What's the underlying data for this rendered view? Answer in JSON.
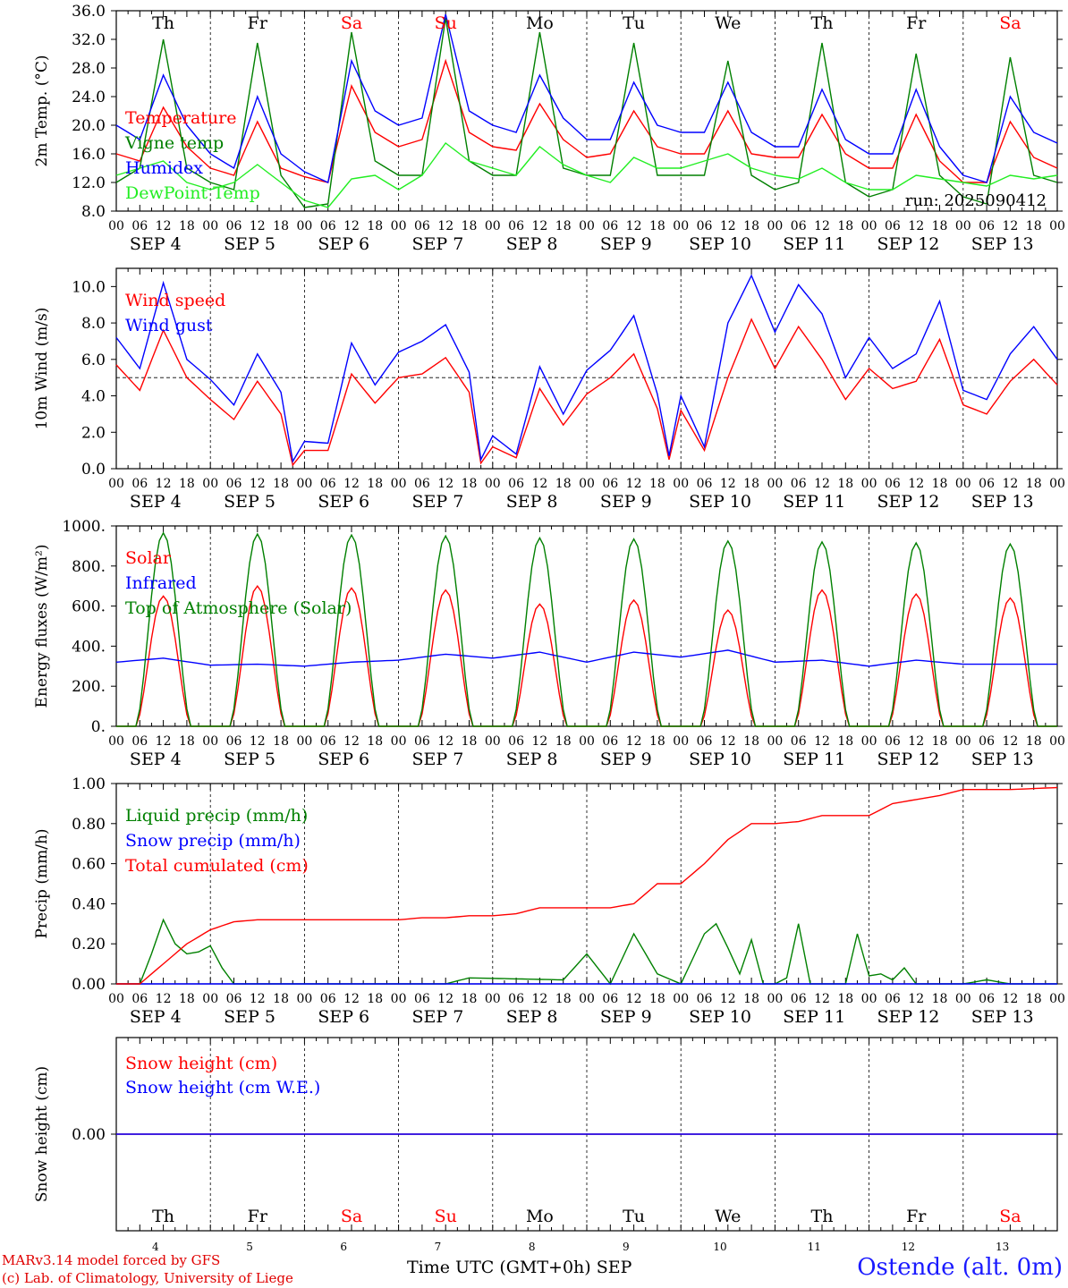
{
  "days": [
    {
      "weekday": "Th",
      "date": "SEP  4",
      "num": "4",
      "weekend": false
    },
    {
      "weekday": "Fr",
      "date": "SEP  5",
      "num": "5",
      "weekend": false
    },
    {
      "weekday": "Sa",
      "date": "SEP  6",
      "num": "6",
      "weekend": true
    },
    {
      "weekday": "Su",
      "date": "SEP  7",
      "num": "7",
      "weekend": true
    },
    {
      "weekday": "Mo",
      "date": "SEP  8",
      "num": "8",
      "weekend": false
    },
    {
      "weekday": "Tu",
      "date": "SEP  9",
      "num": "9",
      "weekend": false
    },
    {
      "weekday": "We",
      "date": "SEP 10",
      "num": "10",
      "weekend": false
    },
    {
      "weekday": "Th",
      "date": "SEP 11",
      "num": "11",
      "weekend": false
    },
    {
      "weekday": "Fr",
      "date": "SEP 12",
      "num": "12",
      "weekend": false
    },
    {
      "weekday": "Sa",
      "date": "SEP 13",
      "num": "13",
      "weekend": true
    }
  ],
  "hour_labels": [
    "00",
    "06",
    "12",
    "18"
  ],
  "footer": {
    "credit_line1": "MARv3.14 model forced by GFS",
    "credit_line2": "(c) Lab. of Climatology, University of Liege",
    "x_title": "Time UTC (GMT+0h) SEP",
    "station": "Ostende (alt. 0m)"
  },
  "colors": {
    "red": "#ff0000",
    "green": "#008000",
    "blue": "#0000ff",
    "lightgreen": "#22ee22"
  },
  "chart_data": [
    {
      "type": "line",
      "ylabel": "2m Temp. (°C)",
      "ylim": [
        8,
        36
      ],
      "yticks": [
        8,
        12,
        16,
        20,
        24,
        28,
        32,
        36
      ],
      "ytick_labels": [
        "8.0",
        "12.0",
        "16.0",
        "20.0",
        "24.0",
        "28.0",
        "32.0",
        "36.0"
      ],
      "annotation": "run: 2025090412",
      "series": [
        {
          "name": "Temperature",
          "color": "#ff0000",
          "x": [
            0,
            6,
            12,
            18,
            24,
            30,
            36,
            42,
            48,
            54,
            60,
            66,
            72,
            78,
            84,
            90,
            96,
            102,
            108,
            114,
            120,
            126,
            132,
            138,
            144,
            150,
            156,
            162,
            168,
            174,
            180,
            186,
            192,
            198,
            204,
            210,
            216,
            222,
            228,
            234,
            240
          ],
          "values": [
            16,
            15,
            22.5,
            17,
            14,
            13,
            20.5,
            14,
            12.8,
            12,
            25.5,
            19,
            17,
            18,
            29,
            19,
            17,
            16.5,
            23,
            18,
            15.5,
            16,
            22,
            17,
            16,
            16,
            22,
            16,
            15.5,
            15.5,
            21.5,
            16,
            14,
            14,
            21.5,
            15,
            12,
            12,
            20.5,
            15.5,
            14
          ]
        },
        {
          "name": "Vigne temp",
          "color": "#008000",
          "x": [
            0,
            6,
            12,
            18,
            24,
            30,
            36,
            42,
            48,
            54,
            60,
            66,
            72,
            78,
            84,
            90,
            96,
            102,
            108,
            114,
            120,
            126,
            132,
            138,
            144,
            150,
            156,
            162,
            168,
            174,
            180,
            186,
            192,
            198,
            204,
            210,
            216,
            222,
            228,
            234,
            240
          ],
          "values": [
            12,
            14,
            32,
            14,
            12,
            11,
            31.5,
            13,
            8.5,
            9,
            33,
            15,
            13,
            13,
            35,
            15,
            13,
            13,
            33,
            14,
            13,
            13,
            31.5,
            13,
            13,
            13,
            29,
            13,
            11,
            12,
            31.5,
            12,
            10,
            11,
            30,
            13,
            10,
            9,
            29.5,
            13,
            12
          ]
        },
        {
          "name": "Humidex",
          "color": "#0000ff",
          "x": [
            0,
            6,
            12,
            18,
            24,
            30,
            36,
            42,
            48,
            54,
            60,
            66,
            72,
            78,
            84,
            90,
            96,
            102,
            108,
            114,
            120,
            126,
            132,
            138,
            144,
            150,
            156,
            162,
            168,
            174,
            180,
            186,
            192,
            198,
            204,
            210,
            216,
            222,
            228,
            234,
            240
          ],
          "values": [
            20,
            18,
            27,
            20,
            16,
            14,
            24,
            16,
            13.5,
            12,
            29,
            22,
            20,
            21,
            35.5,
            22,
            20,
            19,
            27,
            21,
            18,
            18,
            26,
            20,
            19,
            19,
            26,
            19,
            17,
            17,
            25,
            18,
            16,
            16,
            25,
            17,
            13,
            12,
            24,
            19,
            17.5
          ]
        },
        {
          "name": "DewPoint Temp",
          "color": "#22ee22",
          "x": [
            0,
            6,
            12,
            18,
            24,
            30,
            36,
            42,
            48,
            54,
            60,
            66,
            72,
            78,
            84,
            90,
            96,
            102,
            108,
            114,
            120,
            126,
            132,
            138,
            144,
            150,
            156,
            162,
            168,
            174,
            180,
            186,
            192,
            198,
            204,
            210,
            216,
            222,
            228,
            234,
            240
          ],
          "values": [
            13,
            14,
            15,
            12,
            11,
            12,
            14.5,
            12,
            9.5,
            8.5,
            12.5,
            13,
            11,
            13,
            17.5,
            15,
            14,
            13,
            17,
            14.5,
            13,
            12,
            15.5,
            14,
            14,
            15,
            16,
            14,
            13,
            12.5,
            14,
            12,
            11,
            11,
            13,
            12.5,
            12,
            11.5,
            13,
            12.5,
            13
          ]
        }
      ]
    },
    {
      "type": "line",
      "ylabel": "10m Wind (m/s)",
      "ylim": [
        0,
        11
      ],
      "yticks": [
        0,
        2,
        4,
        6,
        8,
        10
      ],
      "ytick_labels": [
        "0.0",
        "2.0",
        "4.0",
        "6.0",
        "8.0",
        "10.0"
      ],
      "reference_line": 5,
      "series": [
        {
          "name": "Wind speed",
          "color": "#ff0000",
          "x": [
            0,
            6,
            12,
            18,
            24,
            30,
            36,
            42,
            45,
            48,
            54,
            60,
            66,
            72,
            78,
            84,
            90,
            93,
            96,
            102,
            108,
            114,
            120,
            126,
            132,
            138,
            141,
            144,
            150,
            156,
            162,
            168,
            174,
            180,
            186,
            192,
            198,
            204,
            210,
            216,
            222,
            228,
            234,
            240
          ],
          "values": [
            5.7,
            4.3,
            7.6,
            5.0,
            3.8,
            2.7,
            4.8,
            3.0,
            0.2,
            1.0,
            1.0,
            5.2,
            3.6,
            5.0,
            5.2,
            6.1,
            4.2,
            0.3,
            1.2,
            0.6,
            4.4,
            2.4,
            4.1,
            5.0,
            6.3,
            3.3,
            0.5,
            3.2,
            1.0,
            5.0,
            8.2,
            5.5,
            7.8,
            6.0,
            3.8,
            5.5,
            4.4,
            4.8,
            7.1,
            3.5,
            3.0,
            4.8,
            6.0,
            4.6
          ]
        },
        {
          "name": "Wind gust",
          "color": "#0000ff",
          "x": [
            0,
            6,
            12,
            18,
            24,
            30,
            36,
            42,
            45,
            48,
            54,
            60,
            66,
            72,
            78,
            84,
            90,
            93,
            96,
            102,
            108,
            114,
            120,
            126,
            132,
            138,
            141,
            144,
            150,
            156,
            162,
            168,
            174,
            180,
            186,
            192,
            198,
            204,
            210,
            216,
            222,
            228,
            234,
            240
          ],
          "values": [
            7.2,
            5.5,
            10.2,
            6.0,
            4.9,
            3.5,
            6.3,
            4.2,
            0.4,
            1.5,
            1.4,
            6.9,
            4.6,
            6.4,
            7.0,
            7.9,
            5.3,
            0.5,
            1.8,
            0.8,
            5.6,
            3.0,
            5.4,
            6.5,
            8.4,
            4.1,
            0.7,
            4.0,
            1.2,
            8.0,
            10.6,
            7.5,
            10.1,
            8.5,
            5.0,
            7.2,
            5.5,
            6.3,
            9.2,
            4.3,
            3.8,
            6.3,
            7.8,
            6.0
          ]
        }
      ]
    },
    {
      "type": "line",
      "ylabel": "Energy fluxes (W/m²)",
      "ylim": [
        0,
        1000
      ],
      "yticks": [
        0,
        200,
        400,
        600,
        800,
        1000
      ],
      "ytick_labels": [
        "0.",
        "200.",
        "400.",
        "600.",
        "800.",
        "1000."
      ],
      "series": [
        {
          "name": "Solar",
          "color": "#ff0000",
          "peaks": [
            650,
            700,
            690,
            680,
            610,
            630,
            580,
            680,
            660,
            640
          ]
        },
        {
          "name": "Infrared",
          "color": "#0000ff",
          "x": [
            0,
            12,
            24,
            36,
            48,
            60,
            72,
            84,
            96,
            108,
            120,
            132,
            144,
            156,
            168,
            180,
            192,
            204,
            216,
            228,
            240
          ],
          "values": [
            320,
            340,
            305,
            310,
            300,
            320,
            330,
            360,
            340,
            370,
            320,
            370,
            345,
            380,
            320,
            330,
            300,
            330,
            310,
            310,
            310
          ]
        },
        {
          "name": "Top of Atmosphere (Solar)",
          "color": "#008000",
          "peaks": [
            965,
            960,
            955,
            950,
            940,
            935,
            925,
            920,
            915,
            910
          ]
        }
      ]
    },
    {
      "type": "line",
      "ylabel": "Precip (mm/h)",
      "ylim": [
        0,
        1
      ],
      "yticks": [
        0,
        0.2,
        0.4,
        0.6,
        0.8,
        1.0
      ],
      "ytick_labels": [
        "0.00",
        "0.20",
        "0.40",
        "0.60",
        "0.80",
        "1.00"
      ],
      "series": [
        {
          "name": "Liquid precip (mm/h)",
          "color": "#008000",
          "x": [
            0,
            6,
            9,
            12,
            15,
            18,
            21,
            24,
            27,
            30,
            84,
            90,
            114,
            120,
            126,
            132,
            138,
            144,
            150,
            153,
            156,
            159,
            162,
            165,
            168,
            171,
            174,
            177,
            180,
            186,
            189,
            192,
            195,
            198,
            201,
            204,
            210,
            216,
            222,
            228,
            240
          ],
          "values": [
            0,
            0,
            0.15,
            0.32,
            0.2,
            0.15,
            0.16,
            0.19,
            0.08,
            0,
            0,
            0.03,
            0.02,
            0.15,
            0,
            0.25,
            0.05,
            0,
            0.25,
            0.3,
            0.18,
            0.05,
            0.22,
            0,
            0,
            0.03,
            0.3,
            0,
            0,
            0,
            0.25,
            0.04,
            0.05,
            0.02,
            0.08,
            0,
            0,
            0,
            0.02,
            0,
            0
          ]
        },
        {
          "name": "Snow precip (mm/h)",
          "color": "#0000ff",
          "x": [
            0,
            240
          ],
          "values": [
            0,
            0
          ]
        },
        {
          "name": "Total cumulated (cm)",
          "color": "#ff0000",
          "x": [
            0,
            6,
            12,
            18,
            24,
            30,
            36,
            42,
            48,
            54,
            60,
            66,
            72,
            78,
            84,
            90,
            96,
            102,
            108,
            114,
            120,
            126,
            132,
            138,
            144,
            150,
            156,
            162,
            168,
            174,
            180,
            186,
            192,
            198,
            204,
            210,
            216,
            222,
            228,
            234,
            240
          ],
          "values": [
            0,
            0,
            0.1,
            0.2,
            0.27,
            0.31,
            0.32,
            0.32,
            0.32,
            0.32,
            0.32,
            0.32,
            0.32,
            0.33,
            0.33,
            0.34,
            0.34,
            0.35,
            0.38,
            0.38,
            0.38,
            0.38,
            0.4,
            0.5,
            0.5,
            0.6,
            0.72,
            0.8,
            0.8,
            0.81,
            0.84,
            0.84,
            0.84,
            0.9,
            0.92,
            0.94,
            0.97,
            0.97,
            0.97,
            0.975,
            0.98
          ]
        }
      ]
    },
    {
      "type": "line",
      "ylabel": "Snow height (cm)",
      "ylim": [
        -1,
        1
      ],
      "yticks": [
        0
      ],
      "ytick_labels": [
        "0.00"
      ],
      "series": [
        {
          "name": "Snow height (cm)",
          "color": "#ff0000",
          "x": [
            0,
            240
          ],
          "values": [
            0,
            0
          ]
        },
        {
          "name": "Snow height (cm W.E.)",
          "color": "#0000ff",
          "x": [
            0,
            240
          ],
          "values": [
            0,
            0
          ]
        }
      ]
    }
  ]
}
